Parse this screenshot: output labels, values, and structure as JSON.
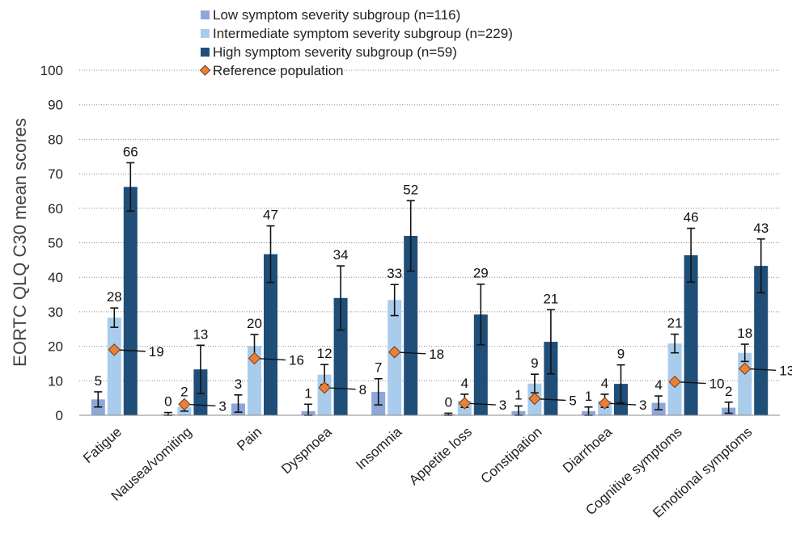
{
  "chart_data": {
    "type": "bar",
    "title": "",
    "xlabel": "",
    "ylabel": "EORTC QLQ C30 mean scores",
    "ylim": [
      0,
      100
    ],
    "yticks": [
      0,
      10,
      20,
      30,
      40,
      50,
      60,
      70,
      80,
      90,
      100
    ],
    "grid": "horizontal dotted",
    "legend_position": "top",
    "categories": [
      "Fatigue",
      "Nausea/vomiting",
      "Pain",
      "Dyspnoea",
      "Insomnia",
      "Appetite loss",
      "Constipation",
      "Diarrhoea",
      "Cognitive symptoms",
      "Emotional symptoms"
    ],
    "series": [
      {
        "name": "Low symptom severity subgroup (n=116)",
        "type": "bar",
        "color": "#8ea7d9",
        "values": [
          4.6,
          0.3,
          3.4,
          1.2,
          6.8,
          0.3,
          1.2,
          1.2,
          3.6,
          2.2
        ],
        "labels": [
          "5",
          "0",
          "3",
          "1",
          "7",
          "0",
          "1",
          "1",
          "4",
          "2"
        ],
        "error": [
          2.2,
          0.5,
          2.5,
          2.0,
          3.8,
          0.3,
          1.5,
          1.2,
          2.0,
          1.6
        ]
      },
      {
        "name": "Intermediate symptom severity subgroup (n=229)",
        "type": "bar",
        "color": "#a9ccec",
        "values": [
          28.3,
          2.4,
          20.1,
          11.8,
          33.4,
          4.2,
          9.2,
          4.2,
          20.8,
          18.1
        ],
        "labels": [
          "28",
          "2",
          "20",
          "12",
          "33",
          "4",
          "9",
          "4",
          "21",
          "18"
        ],
        "error": [
          2.8,
          1.2,
          3.3,
          2.9,
          4.5,
          1.9,
          2.7,
          1.9,
          2.7,
          2.5
        ]
      },
      {
        "name": "High symptom severity subgroup (n=59)",
        "type": "bar",
        "color": "#1f4e79",
        "values": [
          66.2,
          13.3,
          46.7,
          34.0,
          52.0,
          29.2,
          21.3,
          9.1,
          46.4,
          43.3
        ],
        "labels": [
          "66",
          "13",
          "47",
          "34",
          "52",
          "29",
          "21",
          "9",
          "46",
          "43"
        ],
        "error": [
          7.0,
          7.0,
          8.2,
          9.3,
          10.2,
          8.8,
          9.3,
          5.5,
          7.8,
          7.8
        ]
      },
      {
        "name": "Reference population",
        "type": "marker",
        "color": "#e8823a",
        "values": [
          19,
          3.2,
          16.5,
          8,
          18.3,
          3.5,
          4.8,
          3.5,
          9.7,
          13.5
        ],
        "labels": [
          "19",
          "3",
          "16",
          "8",
          "18",
          "3",
          "5",
          "3",
          "10",
          "13"
        ]
      }
    ]
  }
}
